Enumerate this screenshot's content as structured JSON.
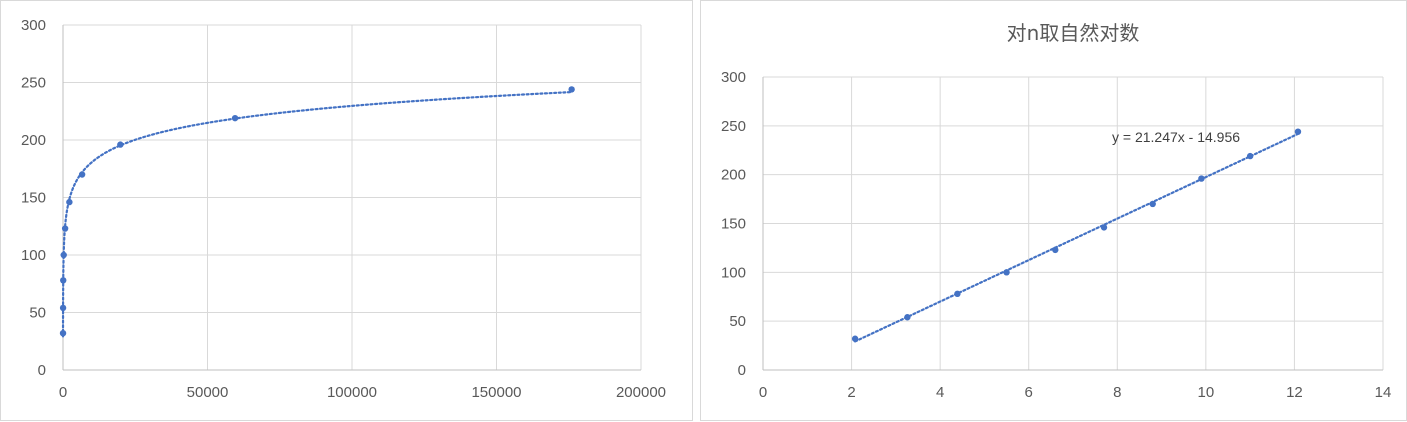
{
  "chart_data": [
    {
      "type": "scatter",
      "title": "",
      "xlabel": "",
      "ylabel": "",
      "xlim": [
        0,
        200000
      ],
      "ylim": [
        0,
        300
      ],
      "x_ticks": [
        "0",
        "50000",
        "100000",
        "150000",
        "200000"
      ],
      "y_ticks": [
        "0",
        "50",
        "100",
        "150",
        "200",
        "250",
        "300"
      ],
      "grid": true,
      "legend": "none",
      "marker_color": "#4472C4",
      "trendline": {
        "type": "logarithmic",
        "a": 21.247,
        "b": -14.956,
        "style": "dotted"
      },
      "series": [
        {
          "x": [
            8,
            26,
            81,
            245,
            735,
            2205,
            6615,
            19845,
            59535,
            176000
          ],
          "y": [
            32,
            54,
            78,
            100,
            123,
            146,
            170,
            196,
            219,
            244
          ]
        }
      ]
    },
    {
      "type": "scatter",
      "title": "对n取自然对数",
      "xlabel": "",
      "ylabel": "",
      "xlim": [
        0,
        14
      ],
      "ylim": [
        0,
        300
      ],
      "x_ticks": [
        "0",
        "2",
        "4",
        "6",
        "8",
        "10",
        "12",
        "14"
      ],
      "y_ticks": [
        "0",
        "50",
        "100",
        "150",
        "200",
        "250",
        "300"
      ],
      "grid": true,
      "legend": "none",
      "marker_color": "#4472C4",
      "trendline": {
        "type": "linear",
        "slope": 21.247,
        "intercept": -14.956,
        "style": "dotted",
        "equation": "y = 21.247x - 14.956"
      },
      "series": [
        {
          "x": [
            2.08,
            3.26,
            4.39,
            5.5,
            6.6,
            7.7,
            8.8,
            9.9,
            11.0,
            12.08
          ],
          "y": [
            32,
            54,
            78,
            100,
            123,
            146,
            170,
            196,
            219,
            244
          ]
        }
      ]
    }
  ]
}
